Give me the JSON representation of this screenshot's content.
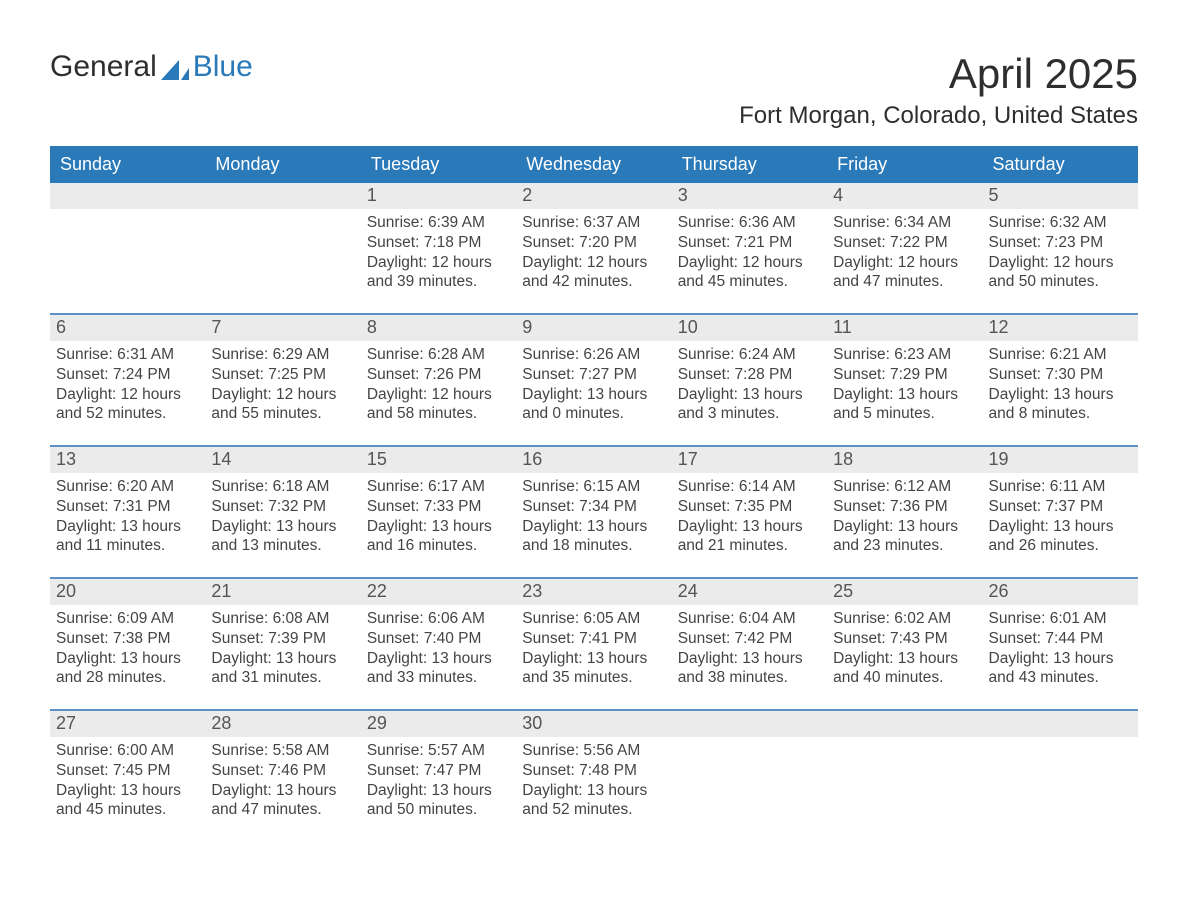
{
  "logo": {
    "word1": "General",
    "word2": "Blue"
  },
  "title": "April 2025",
  "location": "Fort Morgan, Colorado, United States",
  "colors": {
    "header_bg": "#2a79b9",
    "header_text": "#ffffff",
    "week_border": "#5b93c6",
    "daynum_bg": "#ebebeb",
    "text": "#444444",
    "title_text": "#2e2e2e",
    "page_bg": "#ffffff"
  },
  "fonts": {
    "title_size_pt": 42,
    "location_size_pt": 24,
    "header_size_pt": 18,
    "daynum_size_pt": 18,
    "body_size_pt": 15.5,
    "logo_size_pt": 30
  },
  "columns": [
    "Sunday",
    "Monday",
    "Tuesday",
    "Wednesday",
    "Thursday",
    "Friday",
    "Saturday"
  ],
  "weeks": [
    [
      {
        "day": ""
      },
      {
        "day": ""
      },
      {
        "day": "1",
        "sunrise": "6:39 AM",
        "sunset": "7:18 PM",
        "daylight_h": 12,
        "daylight_m": 39
      },
      {
        "day": "2",
        "sunrise": "6:37 AM",
        "sunset": "7:20 PM",
        "daylight_h": 12,
        "daylight_m": 42
      },
      {
        "day": "3",
        "sunrise": "6:36 AM",
        "sunset": "7:21 PM",
        "daylight_h": 12,
        "daylight_m": 45
      },
      {
        "day": "4",
        "sunrise": "6:34 AM",
        "sunset": "7:22 PM",
        "daylight_h": 12,
        "daylight_m": 47
      },
      {
        "day": "5",
        "sunrise": "6:32 AM",
        "sunset": "7:23 PM",
        "daylight_h": 12,
        "daylight_m": 50
      }
    ],
    [
      {
        "day": "6",
        "sunrise": "6:31 AM",
        "sunset": "7:24 PM",
        "daylight_h": 12,
        "daylight_m": 52
      },
      {
        "day": "7",
        "sunrise": "6:29 AM",
        "sunset": "7:25 PM",
        "daylight_h": 12,
        "daylight_m": 55
      },
      {
        "day": "8",
        "sunrise": "6:28 AM",
        "sunset": "7:26 PM",
        "daylight_h": 12,
        "daylight_m": 58
      },
      {
        "day": "9",
        "sunrise": "6:26 AM",
        "sunset": "7:27 PM",
        "daylight_h": 13,
        "daylight_m": 0
      },
      {
        "day": "10",
        "sunrise": "6:24 AM",
        "sunset": "7:28 PM",
        "daylight_h": 13,
        "daylight_m": 3
      },
      {
        "day": "11",
        "sunrise": "6:23 AM",
        "sunset": "7:29 PM",
        "daylight_h": 13,
        "daylight_m": 5
      },
      {
        "day": "12",
        "sunrise": "6:21 AM",
        "sunset": "7:30 PM",
        "daylight_h": 13,
        "daylight_m": 8
      }
    ],
    [
      {
        "day": "13",
        "sunrise": "6:20 AM",
        "sunset": "7:31 PM",
        "daylight_h": 13,
        "daylight_m": 11
      },
      {
        "day": "14",
        "sunrise": "6:18 AM",
        "sunset": "7:32 PM",
        "daylight_h": 13,
        "daylight_m": 13
      },
      {
        "day": "15",
        "sunrise": "6:17 AM",
        "sunset": "7:33 PM",
        "daylight_h": 13,
        "daylight_m": 16
      },
      {
        "day": "16",
        "sunrise": "6:15 AM",
        "sunset": "7:34 PM",
        "daylight_h": 13,
        "daylight_m": 18
      },
      {
        "day": "17",
        "sunrise": "6:14 AM",
        "sunset": "7:35 PM",
        "daylight_h": 13,
        "daylight_m": 21
      },
      {
        "day": "18",
        "sunrise": "6:12 AM",
        "sunset": "7:36 PM",
        "daylight_h": 13,
        "daylight_m": 23
      },
      {
        "day": "19",
        "sunrise": "6:11 AM",
        "sunset": "7:37 PM",
        "daylight_h": 13,
        "daylight_m": 26
      }
    ],
    [
      {
        "day": "20",
        "sunrise": "6:09 AM",
        "sunset": "7:38 PM",
        "daylight_h": 13,
        "daylight_m": 28
      },
      {
        "day": "21",
        "sunrise": "6:08 AM",
        "sunset": "7:39 PM",
        "daylight_h": 13,
        "daylight_m": 31
      },
      {
        "day": "22",
        "sunrise": "6:06 AM",
        "sunset": "7:40 PM",
        "daylight_h": 13,
        "daylight_m": 33
      },
      {
        "day": "23",
        "sunrise": "6:05 AM",
        "sunset": "7:41 PM",
        "daylight_h": 13,
        "daylight_m": 35
      },
      {
        "day": "24",
        "sunrise": "6:04 AM",
        "sunset": "7:42 PM",
        "daylight_h": 13,
        "daylight_m": 38
      },
      {
        "day": "25",
        "sunrise": "6:02 AM",
        "sunset": "7:43 PM",
        "daylight_h": 13,
        "daylight_m": 40
      },
      {
        "day": "26",
        "sunrise": "6:01 AM",
        "sunset": "7:44 PM",
        "daylight_h": 13,
        "daylight_m": 43
      }
    ],
    [
      {
        "day": "27",
        "sunrise": "6:00 AM",
        "sunset": "7:45 PM",
        "daylight_h": 13,
        "daylight_m": 45
      },
      {
        "day": "28",
        "sunrise": "5:58 AM",
        "sunset": "7:46 PM",
        "daylight_h": 13,
        "daylight_m": 47
      },
      {
        "day": "29",
        "sunrise": "5:57 AM",
        "sunset": "7:47 PM",
        "daylight_h": 13,
        "daylight_m": 50
      },
      {
        "day": "30",
        "sunrise": "5:56 AM",
        "sunset": "7:48 PM",
        "daylight_h": 13,
        "daylight_m": 52
      },
      {
        "day": ""
      },
      {
        "day": ""
      },
      {
        "day": ""
      }
    ]
  ],
  "labels": {
    "sunrise": "Sunrise: ",
    "sunset": "Sunset: ",
    "daylight_prefix": "Daylight: ",
    "hours_word": " hours",
    "and_word": "and ",
    "minutes_word": " minutes."
  }
}
